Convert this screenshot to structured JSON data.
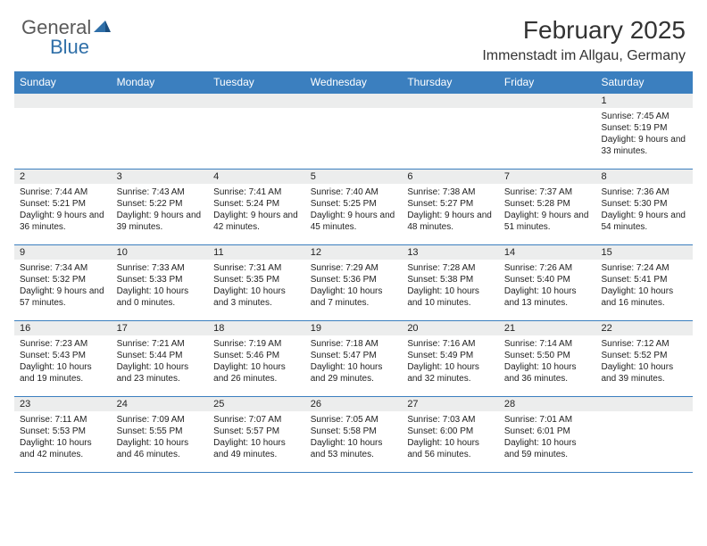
{
  "brand": {
    "general": "General",
    "blue": "Blue"
  },
  "title": "February 2025",
  "location": "Immenstadt im Allgau, Germany",
  "header_bg": "#3b7fbf",
  "daynames": [
    "Sunday",
    "Monday",
    "Tuesday",
    "Wednesday",
    "Thursday",
    "Friday",
    "Saturday"
  ],
  "weeks": [
    [
      null,
      null,
      null,
      null,
      null,
      null,
      {
        "n": "1",
        "sr": "Sunrise: 7:45 AM",
        "ss": "Sunset: 5:19 PM",
        "dl": "Daylight: 9 hours and 33 minutes."
      }
    ],
    [
      {
        "n": "2",
        "sr": "Sunrise: 7:44 AM",
        "ss": "Sunset: 5:21 PM",
        "dl": "Daylight: 9 hours and 36 minutes."
      },
      {
        "n": "3",
        "sr": "Sunrise: 7:43 AM",
        "ss": "Sunset: 5:22 PM",
        "dl": "Daylight: 9 hours and 39 minutes."
      },
      {
        "n": "4",
        "sr": "Sunrise: 7:41 AM",
        "ss": "Sunset: 5:24 PM",
        "dl": "Daylight: 9 hours and 42 minutes."
      },
      {
        "n": "5",
        "sr": "Sunrise: 7:40 AM",
        "ss": "Sunset: 5:25 PM",
        "dl": "Daylight: 9 hours and 45 minutes."
      },
      {
        "n": "6",
        "sr": "Sunrise: 7:38 AM",
        "ss": "Sunset: 5:27 PM",
        "dl": "Daylight: 9 hours and 48 minutes."
      },
      {
        "n": "7",
        "sr": "Sunrise: 7:37 AM",
        "ss": "Sunset: 5:28 PM",
        "dl": "Daylight: 9 hours and 51 minutes."
      },
      {
        "n": "8",
        "sr": "Sunrise: 7:36 AM",
        "ss": "Sunset: 5:30 PM",
        "dl": "Daylight: 9 hours and 54 minutes."
      }
    ],
    [
      {
        "n": "9",
        "sr": "Sunrise: 7:34 AM",
        "ss": "Sunset: 5:32 PM",
        "dl": "Daylight: 9 hours and 57 minutes."
      },
      {
        "n": "10",
        "sr": "Sunrise: 7:33 AM",
        "ss": "Sunset: 5:33 PM",
        "dl": "Daylight: 10 hours and 0 minutes."
      },
      {
        "n": "11",
        "sr": "Sunrise: 7:31 AM",
        "ss": "Sunset: 5:35 PM",
        "dl": "Daylight: 10 hours and 3 minutes."
      },
      {
        "n": "12",
        "sr": "Sunrise: 7:29 AM",
        "ss": "Sunset: 5:36 PM",
        "dl": "Daylight: 10 hours and 7 minutes."
      },
      {
        "n": "13",
        "sr": "Sunrise: 7:28 AM",
        "ss": "Sunset: 5:38 PM",
        "dl": "Daylight: 10 hours and 10 minutes."
      },
      {
        "n": "14",
        "sr": "Sunrise: 7:26 AM",
        "ss": "Sunset: 5:40 PM",
        "dl": "Daylight: 10 hours and 13 minutes."
      },
      {
        "n": "15",
        "sr": "Sunrise: 7:24 AM",
        "ss": "Sunset: 5:41 PM",
        "dl": "Daylight: 10 hours and 16 minutes."
      }
    ],
    [
      {
        "n": "16",
        "sr": "Sunrise: 7:23 AM",
        "ss": "Sunset: 5:43 PM",
        "dl": "Daylight: 10 hours and 19 minutes."
      },
      {
        "n": "17",
        "sr": "Sunrise: 7:21 AM",
        "ss": "Sunset: 5:44 PM",
        "dl": "Daylight: 10 hours and 23 minutes."
      },
      {
        "n": "18",
        "sr": "Sunrise: 7:19 AM",
        "ss": "Sunset: 5:46 PM",
        "dl": "Daylight: 10 hours and 26 minutes."
      },
      {
        "n": "19",
        "sr": "Sunrise: 7:18 AM",
        "ss": "Sunset: 5:47 PM",
        "dl": "Daylight: 10 hours and 29 minutes."
      },
      {
        "n": "20",
        "sr": "Sunrise: 7:16 AM",
        "ss": "Sunset: 5:49 PM",
        "dl": "Daylight: 10 hours and 32 minutes."
      },
      {
        "n": "21",
        "sr": "Sunrise: 7:14 AM",
        "ss": "Sunset: 5:50 PM",
        "dl": "Daylight: 10 hours and 36 minutes."
      },
      {
        "n": "22",
        "sr": "Sunrise: 7:12 AM",
        "ss": "Sunset: 5:52 PM",
        "dl": "Daylight: 10 hours and 39 minutes."
      }
    ],
    [
      {
        "n": "23",
        "sr": "Sunrise: 7:11 AM",
        "ss": "Sunset: 5:53 PM",
        "dl": "Daylight: 10 hours and 42 minutes."
      },
      {
        "n": "24",
        "sr": "Sunrise: 7:09 AM",
        "ss": "Sunset: 5:55 PM",
        "dl": "Daylight: 10 hours and 46 minutes."
      },
      {
        "n": "25",
        "sr": "Sunrise: 7:07 AM",
        "ss": "Sunset: 5:57 PM",
        "dl": "Daylight: 10 hours and 49 minutes."
      },
      {
        "n": "26",
        "sr": "Sunrise: 7:05 AM",
        "ss": "Sunset: 5:58 PM",
        "dl": "Daylight: 10 hours and 53 minutes."
      },
      {
        "n": "27",
        "sr": "Sunrise: 7:03 AM",
        "ss": "Sunset: 6:00 PM",
        "dl": "Daylight: 10 hours and 56 minutes."
      },
      {
        "n": "28",
        "sr": "Sunrise: 7:01 AM",
        "ss": "Sunset: 6:01 PM",
        "dl": "Daylight: 10 hours and 59 minutes."
      },
      null
    ]
  ]
}
